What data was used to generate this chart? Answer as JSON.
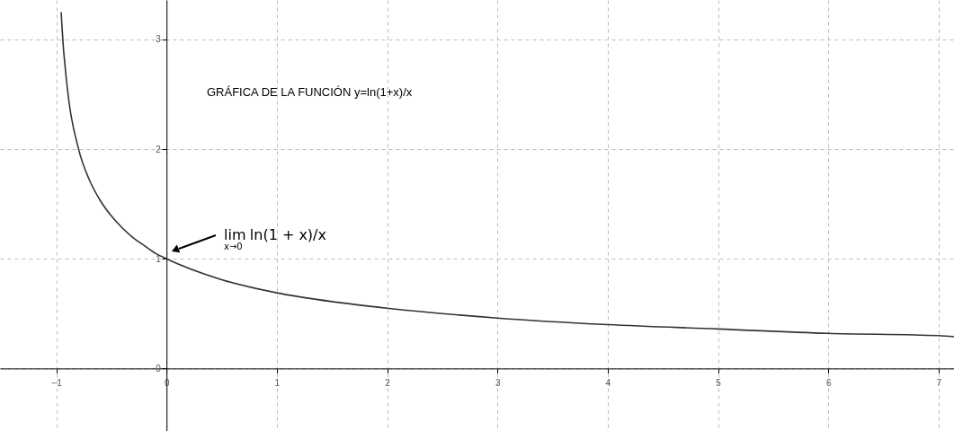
{
  "chart_data": {
    "type": "line",
    "x": [
      -0.955,
      -0.95,
      -0.9,
      -0.8,
      -0.7,
      -0.6,
      -0.5,
      -0.4,
      -0.3,
      -0.2,
      -0.1,
      0,
      0.5,
      1,
      1.5,
      2,
      3,
      4,
      5,
      6,
      7,
      7.14
    ],
    "series": [
      {
        "color": "#333333",
        "values": [
          3.25,
          3.15,
          2.56,
          2.01,
          1.72,
          1.53,
          1.39,
          1.28,
          1.19,
          1.12,
          1.05,
          1.0,
          0.81,
          0.69,
          0.61,
          0.55,
          0.46,
          0.4,
          0.36,
          0.32,
          0.3,
          0.29
        ]
      }
    ],
    "xlim": [
      -1.51,
      7.14
    ],
    "ylim": [
      -0.57,
      3.36
    ],
    "xticks": [
      -1,
      0,
      1,
      2,
      3,
      4,
      5,
      6,
      7
    ],
    "yticks": [
      0,
      1,
      2,
      3
    ],
    "grid": true,
    "marker": "none",
    "line_style": "solid",
    "annotations": [
      "GRÁFICA DE LA FUNCIÓN y=ln(1+x)/x",
      "lim$_{x→0}$ ln(1 + x)/x"
    ]
  }
}
